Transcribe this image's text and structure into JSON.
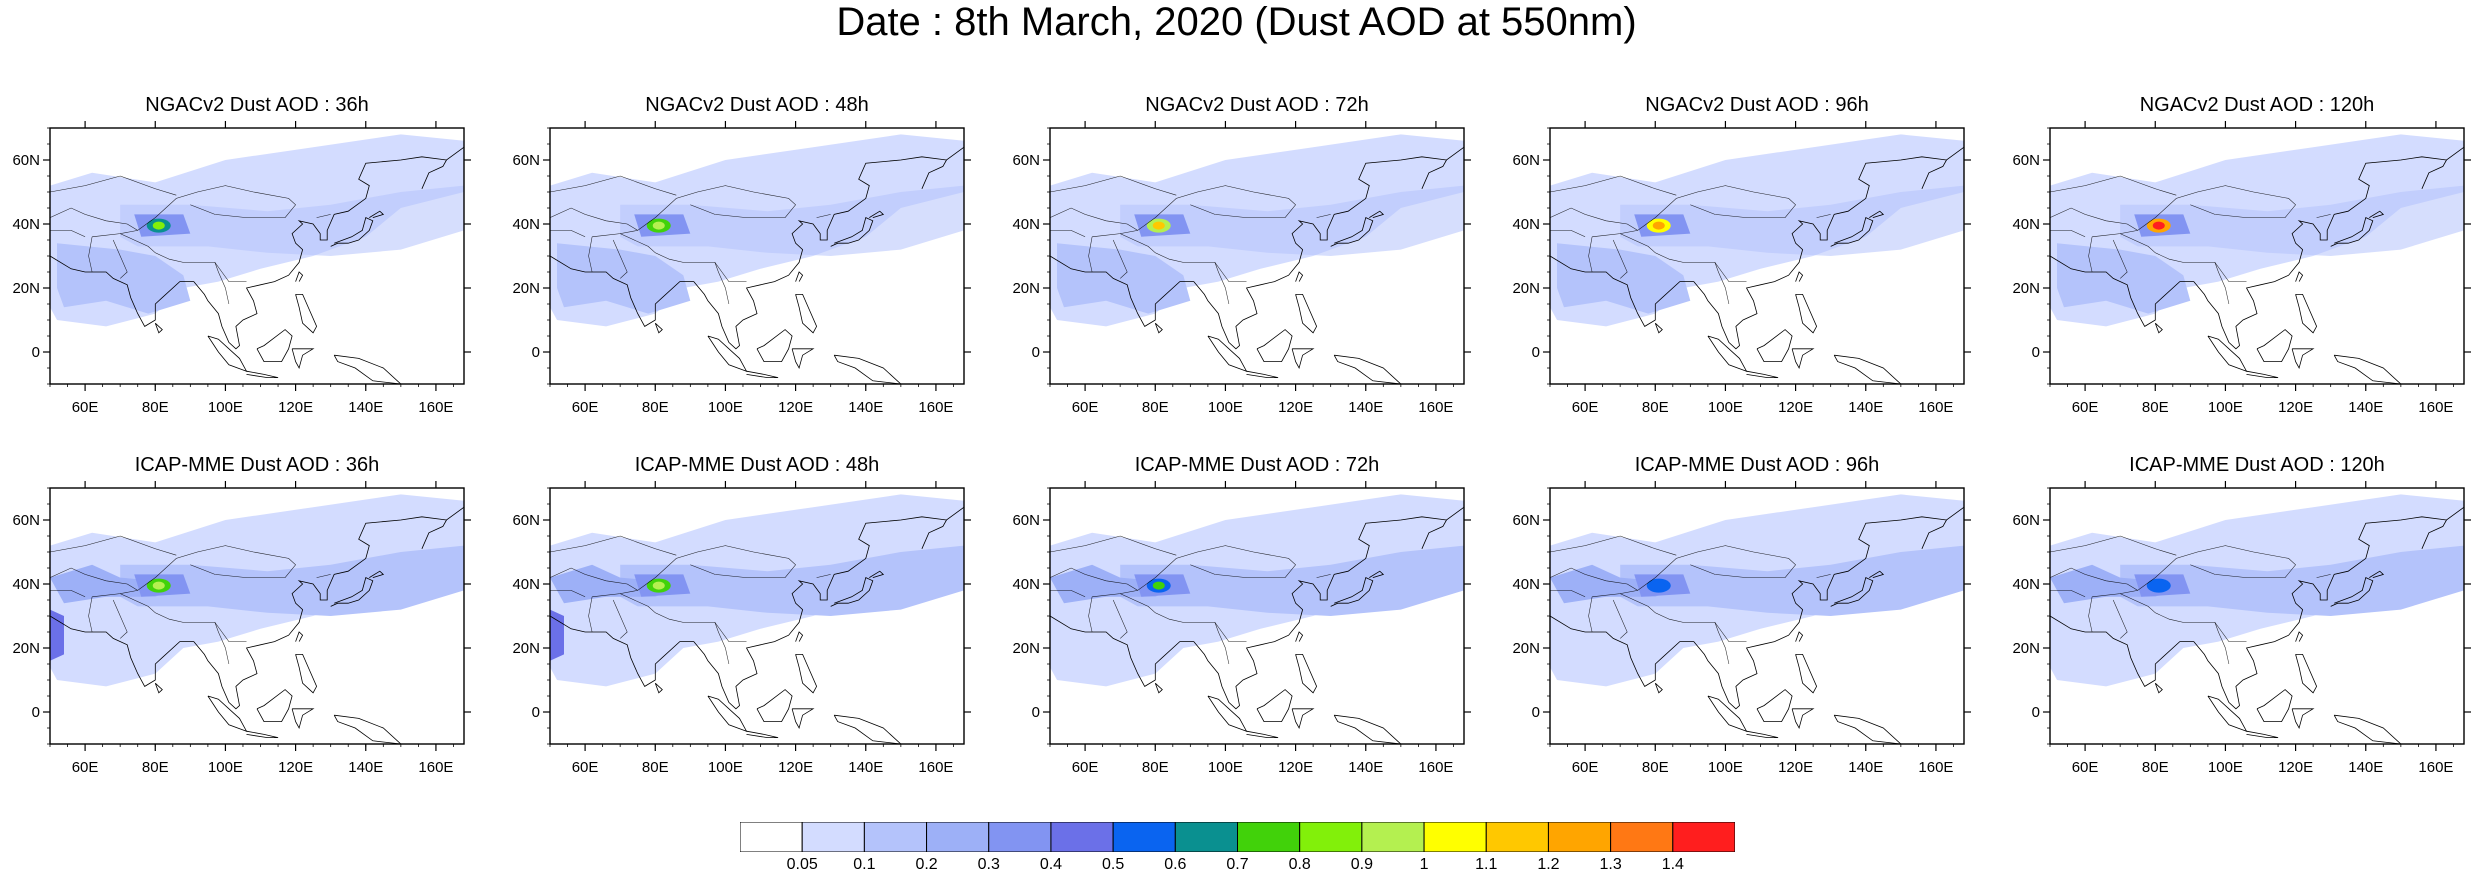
{
  "title": "Date : 8th March, 2020 (Dust AOD at 550nm)",
  "axes": {
    "lat_ticks": [
      {
        "v": 60,
        "label": "60N"
      },
      {
        "v": 40,
        "label": "40N"
      },
      {
        "v": 20,
        "label": "20N"
      },
      {
        "v": 0,
        "label": "0"
      }
    ],
    "lon_ticks": [
      {
        "v": 60,
        "label": "60E"
      },
      {
        "v": 80,
        "label": "80E"
      },
      {
        "v": 100,
        "label": "100E"
      },
      {
        "v": 120,
        "label": "120E"
      },
      {
        "v": 140,
        "label": "140E"
      },
      {
        "v": 160,
        "label": "160E"
      }
    ],
    "lat_range": [
      -10,
      70
    ],
    "lon_range": [
      50,
      168
    ]
  },
  "panels": [
    {
      "title": "NGACv2 Dust AOD : 36h",
      "model": "NGACv2",
      "lead": "36h",
      "peak": 0.8
    },
    {
      "title": "NGACv2 Dust AOD : 48h",
      "model": "NGACv2",
      "lead": "48h",
      "peak": 0.9
    },
    {
      "title": "NGACv2 Dust AOD : 72h",
      "model": "NGACv2",
      "lead": "72h",
      "peak": 1.1
    },
    {
      "title": "NGACv2 Dust AOD : 96h",
      "model": "NGACv2",
      "lead": "96h",
      "peak": 1.2
    },
    {
      "title": "NGACv2 Dust AOD : 120h",
      "model": "NGACv2",
      "lead": "120h",
      "peak": 1.4
    },
    {
      "title": "ICAP-MME Dust AOD : 36h",
      "model": "ICAP-MME",
      "lead": "36h",
      "peak": 0.9
    },
    {
      "title": "ICAP-MME Dust AOD : 48h",
      "model": "ICAP-MME",
      "lead": "48h",
      "peak": 0.9
    },
    {
      "title": "ICAP-MME Dust AOD : 72h",
      "model": "ICAP-MME",
      "lead": "72h",
      "peak": 0.7
    },
    {
      "title": "ICAP-MME Dust AOD : 96h",
      "model": "ICAP-MME",
      "lead": "96h",
      "peak": 0.5
    },
    {
      "title": "ICAP-MME Dust AOD : 120h",
      "model": "ICAP-MME",
      "lead": "120h",
      "peak": 0.5
    }
  ],
  "colorbar": {
    "labels": [
      "0.05",
      "0.1",
      "0.2",
      "0.3",
      "0.4",
      "0.5",
      "0.6",
      "0.7",
      "0.8",
      "0.9",
      "1",
      "1.1",
      "1.2",
      "1.3",
      "1.4"
    ],
    "colors": [
      "#ffffff",
      "#d3dcff",
      "#b4c3fb",
      "#9db0f7",
      "#8294f2",
      "#6b70e8",
      "#0a64f0",
      "#0a9090",
      "#41d20a",
      "#82f00a",
      "#b4f050",
      "#ffff00",
      "#ffc800",
      "#ffa500",
      "#ff7814",
      "#ff1e1e"
    ]
  }
}
